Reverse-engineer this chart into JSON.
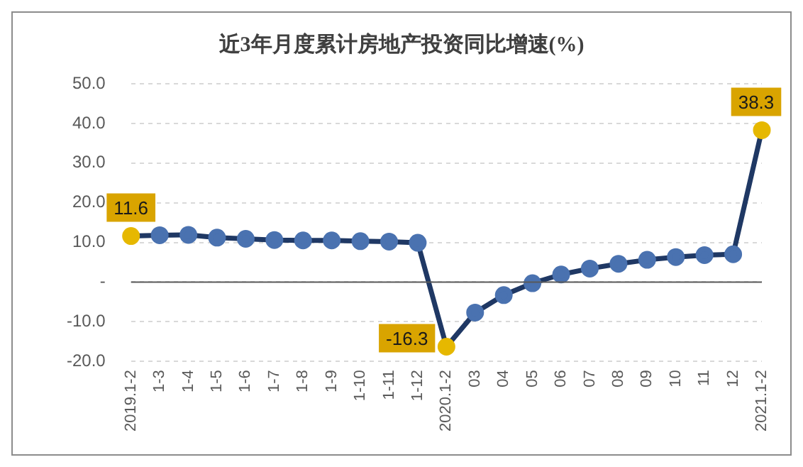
{
  "chart_data": {
    "type": "line",
    "title": "近3年月度累计房地产投资同比增速(%)",
    "categories": [
      "2019.1-2",
      "1-3",
      "1-4",
      "1-5",
      "1-6",
      "1-7",
      "1-8",
      "1-9",
      "1-10",
      "1-11",
      "1-12",
      "2020.1-2",
      "03",
      "04",
      "05",
      "06",
      "07",
      "08",
      "09",
      "10",
      "11",
      "12",
      "2021.1-2"
    ],
    "series": [
      {
        "color": "#1f3864",
        "colors": [
          "#e6b800",
          "#4a72b0",
          "#4a72b0",
          "#4a72b0",
          "#4a72b0",
          "#4a72b0",
          "#4a72b0",
          "#4a72b0",
          "#4a72b0",
          "#4a72b0",
          "#4a72b0",
          "#e6b800",
          "#4a72b0",
          "#4a72b0",
          "#4a72b0",
          "#4a72b0",
          "#4a72b0",
          "#4a72b0",
          "#4a72b0",
          "#4a72b0",
          "#4a72b0",
          "#4a72b0",
          "#e6b800"
        ],
        "values": [
          11.6,
          11.8,
          11.9,
          11.2,
          10.9,
          10.6,
          10.5,
          10.5,
          10.3,
          10.2,
          9.9,
          -16.3,
          -7.7,
          -3.3,
          -0.3,
          1.9,
          3.4,
          4.6,
          5.6,
          6.3,
          6.8,
          7.0,
          38.3
        ],
        "value_labels": [
          "11.6",
          null,
          null,
          null,
          null,
          null,
          null,
          null,
          null,
          null,
          null,
          "-16.3",
          null,
          null,
          null,
          null,
          null,
          null,
          null,
          null,
          null,
          null,
          "38.3"
        ]
      }
    ],
    "ylim": [
      -20,
      50
    ],
    "yticks": [
      {
        "value": -20,
        "label": "-20.0"
      },
      {
        "value": -10,
        "label": "-10.0"
      },
      {
        "value": 0,
        "label": "-"
      },
      {
        "value": 10,
        "label": "10.0"
      },
      {
        "value": 20,
        "label": "20.0"
      },
      {
        "value": 30,
        "label": "30.0"
      },
      {
        "value": 40,
        "label": "40.0"
      },
      {
        "value": 50,
        "label": "50.0"
      }
    ],
    "grid": "y",
    "legend": false,
    "marker": "circle",
    "line_style": "solid"
  }
}
